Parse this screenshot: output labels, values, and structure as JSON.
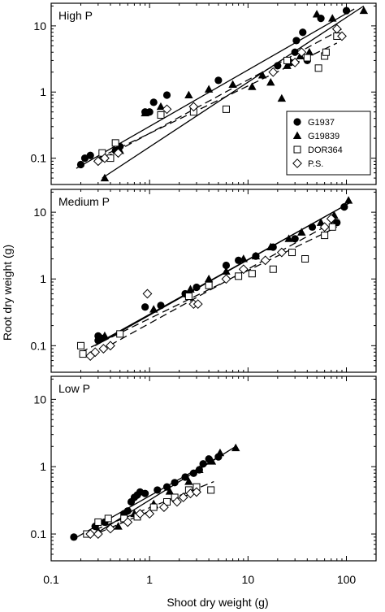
{
  "y_axis_label": "Root dry weight (g)",
  "x_axis_label": "Shoot dry weight (g)",
  "x_tick_labels": [
    "0.1",
    "1",
    "10",
    "100"
  ],
  "y_tick_labels": [
    "0.1",
    "1",
    "10"
  ],
  "legend": [
    {
      "label": "G1937",
      "marker": "filled-circle"
    },
    {
      "label": "G19839",
      "marker": "filled-triangle"
    },
    {
      "label": "DOR364",
      "marker": "open-square"
    },
    {
      "label": "P.S.",
      "marker": "open-diamond"
    }
  ],
  "colors": {
    "ink": "#000000",
    "background": "#ffffff"
  },
  "chart_data": [
    {
      "type": "scatter",
      "title": "High P",
      "x_scale": "log",
      "y_scale": "log",
      "xlim": [
        0.1,
        200
      ],
      "ylim": [
        0.04,
        22
      ],
      "legend_position": "middle-right",
      "series": [
        {
          "name": "G1937",
          "marker": "filled-circle",
          "line": "solid",
          "points": [
            [
              0.2,
              0.08
            ],
            [
              0.22,
              0.1
            ],
            [
              0.25,
              0.11
            ],
            [
              0.45,
              0.13
            ],
            [
              0.5,
              0.15
            ],
            [
              0.9,
              0.5
            ],
            [
              1.0,
              0.5
            ],
            [
              1.1,
              0.7
            ],
            [
              1.5,
              0.9
            ],
            [
              5,
              1.5
            ],
            [
              20,
              2.5
            ],
            [
              27,
              2.8
            ],
            [
              30,
              4
            ],
            [
              31,
              6
            ],
            [
              36,
              8
            ],
            [
              40,
              3
            ],
            [
              55,
              13
            ],
            [
              100,
              17
            ]
          ],
          "fit": [
            [
              0.18,
              0.07
            ],
            [
              120,
              18
            ]
          ]
        },
        {
          "name": "G19839",
          "marker": "filled-triangle",
          "line": "solid",
          "points": [
            [
              0.35,
              0.05
            ],
            [
              0.5,
              0.13
            ],
            [
              0.9,
              0.48
            ],
            [
              1.3,
              0.6
            ],
            [
              2.5,
              0.9
            ],
            [
              4,
              1.1
            ],
            [
              7,
              1.3
            ],
            [
              11,
              1.2
            ],
            [
              14,
              1.8
            ],
            [
              17,
              1.4
            ],
            [
              22,
              0.8
            ],
            [
              25,
              2.5
            ],
            [
              34,
              3.5
            ],
            [
              42,
              4
            ],
            [
              50,
              15
            ],
            [
              72,
              13
            ],
            [
              150,
              17
            ]
          ],
          "fit": [
            [
              0.33,
              0.05
            ],
            [
              150,
              20
            ]
          ]
        },
        {
          "name": "DOR364",
          "marker": "open-square",
          "line": "dashed",
          "points": [
            [
              0.33,
              0.12
            ],
            [
              0.4,
              0.1
            ],
            [
              0.45,
              0.17
            ],
            [
              1.3,
              0.45
            ],
            [
              2.8,
              0.5
            ],
            [
              6,
              0.55
            ],
            [
              25,
              3
            ],
            [
              40,
              3.3
            ],
            [
              52,
              2.3
            ],
            [
              60,
              3.5
            ],
            [
              62,
              4
            ],
            [
              80,
              7
            ]
          ],
          "fit": [
            [
              0.3,
              0.1
            ],
            [
              80,
              5.5
            ]
          ]
        },
        {
          "name": "P.S.",
          "marker": "open-diamond",
          "line": "dashed",
          "points": [
            [
              0.3,
              0.09
            ],
            [
              0.35,
              0.1
            ],
            [
              0.48,
              0.12
            ],
            [
              1.5,
              0.55
            ],
            [
              2.8,
              0.6
            ],
            [
              18,
              2
            ],
            [
              30,
              2.8
            ],
            [
              35,
              4
            ],
            [
              80,
              9
            ],
            [
              90,
              7
            ]
          ],
          "fit": [
            [
              0.28,
              0.085
            ],
            [
              90,
              9
            ]
          ]
        }
      ]
    },
    {
      "type": "scatter",
      "title": "Medium P",
      "x_scale": "log",
      "y_scale": "log",
      "xlim": [
        0.1,
        200
      ],
      "ylim": [
        0.04,
        22
      ],
      "series": [
        {
          "name": "G1937",
          "marker": "filled-circle",
          "line": "solid",
          "points": [
            [
              0.3,
              0.12
            ],
            [
              0.3,
              0.14
            ],
            [
              0.32,
              0.13
            ],
            [
              0.9,
              0.38
            ],
            [
              1.3,
              0.4
            ],
            [
              2.3,
              0.6
            ],
            [
              3,
              0.75
            ],
            [
              6,
              1.6
            ],
            [
              8,
              1.9
            ],
            [
              12,
              2.2
            ],
            [
              18,
              3
            ],
            [
              30,
              4
            ],
            [
              45,
              6
            ],
            [
              80,
              7
            ],
            [
              95,
              12
            ]
          ],
          "fit": [
            [
              0.28,
              0.1
            ],
            [
              100,
              13
            ]
          ]
        },
        {
          "name": "G19839",
          "marker": "filled-triangle",
          "line": "solid",
          "points": [
            [
              0.35,
              0.14
            ],
            [
              1.1,
              0.35
            ],
            [
              2.6,
              0.7
            ],
            [
              4,
              1
            ],
            [
              6,
              1.3
            ],
            [
              9,
              2
            ],
            [
              12,
              2.2
            ],
            [
              17,
              3
            ],
            [
              26,
              4
            ],
            [
              35,
              5
            ],
            [
              55,
              7
            ],
            [
              75,
              9
            ],
            [
              105,
              15
            ]
          ],
          "fit": [
            [
              0.3,
              0.11
            ],
            [
              110,
              14
            ]
          ]
        },
        {
          "name": "DOR364",
          "marker": "open-square",
          "line": "dashed",
          "points": [
            [
              0.2,
              0.1
            ],
            [
              0.21,
              0.075
            ],
            [
              0.5,
              0.15
            ],
            [
              2.5,
              0.55
            ],
            [
              4,
              0.8
            ],
            [
              8,
              1.1
            ],
            [
              11,
              1.2
            ],
            [
              18,
              1.4
            ],
            [
              28,
              2.5
            ],
            [
              38,
              2
            ],
            [
              60,
              4.5
            ],
            [
              72,
              6
            ]
          ],
          "fit": [
            [
              0.2,
              0.08
            ],
            [
              80,
              6
            ]
          ]
        },
        {
          "name": "P.S.",
          "marker": "open-diamond",
          "line": "dashed",
          "points": [
            [
              0.25,
              0.07
            ],
            [
              0.28,
              0.08
            ],
            [
              0.34,
              0.09
            ],
            [
              0.4,
              0.1
            ],
            [
              0.95,
              0.6
            ],
            [
              2.8,
              0.42
            ],
            [
              3.1,
              0.42
            ],
            [
              6,
              1
            ],
            [
              9,
              1.4
            ],
            [
              15,
              1.9
            ],
            [
              22,
              2.5
            ],
            [
              60,
              6
            ],
            [
              70,
              8
            ]
          ],
          "fit": [
            [
              0.25,
              0.07
            ],
            [
              85,
              8
            ]
          ]
        }
      ]
    },
    {
      "type": "scatter",
      "title": "Low P",
      "x_scale": "log",
      "y_scale": "log",
      "xlim": [
        0.1,
        200
      ],
      "ylim": [
        0.04,
        22
      ],
      "series": [
        {
          "name": "G1937",
          "marker": "filled-circle",
          "line": "solid",
          "points": [
            [
              0.17,
              0.09
            ],
            [
              0.28,
              0.13
            ],
            [
              0.35,
              0.15
            ],
            [
              0.55,
              0.2
            ],
            [
              0.6,
              0.22
            ],
            [
              0.65,
              0.3
            ],
            [
              0.7,
              0.35
            ],
            [
              0.75,
              0.38
            ],
            [
              0.8,
              0.42
            ],
            [
              0.9,
              0.4
            ],
            [
              1.2,
              0.45
            ],
            [
              1.5,
              0.5
            ],
            [
              1.8,
              0.58
            ],
            [
              2.3,
              0.7
            ],
            [
              2.8,
              0.8
            ],
            [
              3.2,
              0.9
            ],
            [
              3.5,
              1.1
            ],
            [
              4,
              1.3
            ],
            [
              5,
              1.4
            ]
          ],
          "fit": [
            [
              0.17,
              0.085
            ],
            [
              5.5,
              1.5
            ]
          ]
        },
        {
          "name": "G19839",
          "marker": "filled-triangle",
          "line": "solid",
          "points": [
            [
              0.3,
              0.11
            ],
            [
              0.48,
              0.13
            ],
            [
              0.7,
              0.2
            ],
            [
              1.1,
              0.28
            ],
            [
              1.6,
              0.43
            ],
            [
              2.5,
              0.6
            ],
            [
              3.2,
              0.9
            ],
            [
              4.3,
              1.2
            ],
            [
              5.2,
              1.6
            ],
            [
              7.5,
              1.9
            ]
          ],
          "fit": [
            [
              0.28,
              0.1
            ],
            [
              7.5,
              2
            ]
          ]
        },
        {
          "name": "DOR364",
          "marker": "open-square",
          "line": "dashed",
          "points": [
            [
              0.23,
              0.1
            ],
            [
              0.3,
              0.15
            ],
            [
              0.38,
              0.17
            ],
            [
              0.55,
              0.17
            ],
            [
              0.75,
              0.18
            ],
            [
              1.1,
              0.25
            ],
            [
              1.5,
              0.3
            ],
            [
              1.8,
              0.35
            ],
            [
              2.5,
              0.45
            ],
            [
              3,
              0.5
            ],
            [
              4.2,
              0.45
            ]
          ],
          "fit": [
            [
              0.22,
              0.1
            ],
            [
              4.5,
              0.6
            ]
          ]
        },
        {
          "name": "P.S.",
          "marker": "open-diamond",
          "line": "dashed",
          "points": [
            [
              0.25,
              0.1
            ],
            [
              0.3,
              0.1
            ],
            [
              0.4,
              0.12
            ],
            [
              0.6,
              0.15
            ],
            [
              0.8,
              0.2
            ],
            [
              1.0,
              0.2
            ],
            [
              1.4,
              0.25
            ],
            [
              1.9,
              0.3
            ],
            [
              2.2,
              0.35
            ],
            [
              2.6,
              0.4
            ],
            [
              3,
              0.42
            ]
          ],
          "fit": [
            [
              0.24,
              0.09
            ],
            [
              3.2,
              0.45
            ]
          ]
        }
      ]
    }
  ]
}
